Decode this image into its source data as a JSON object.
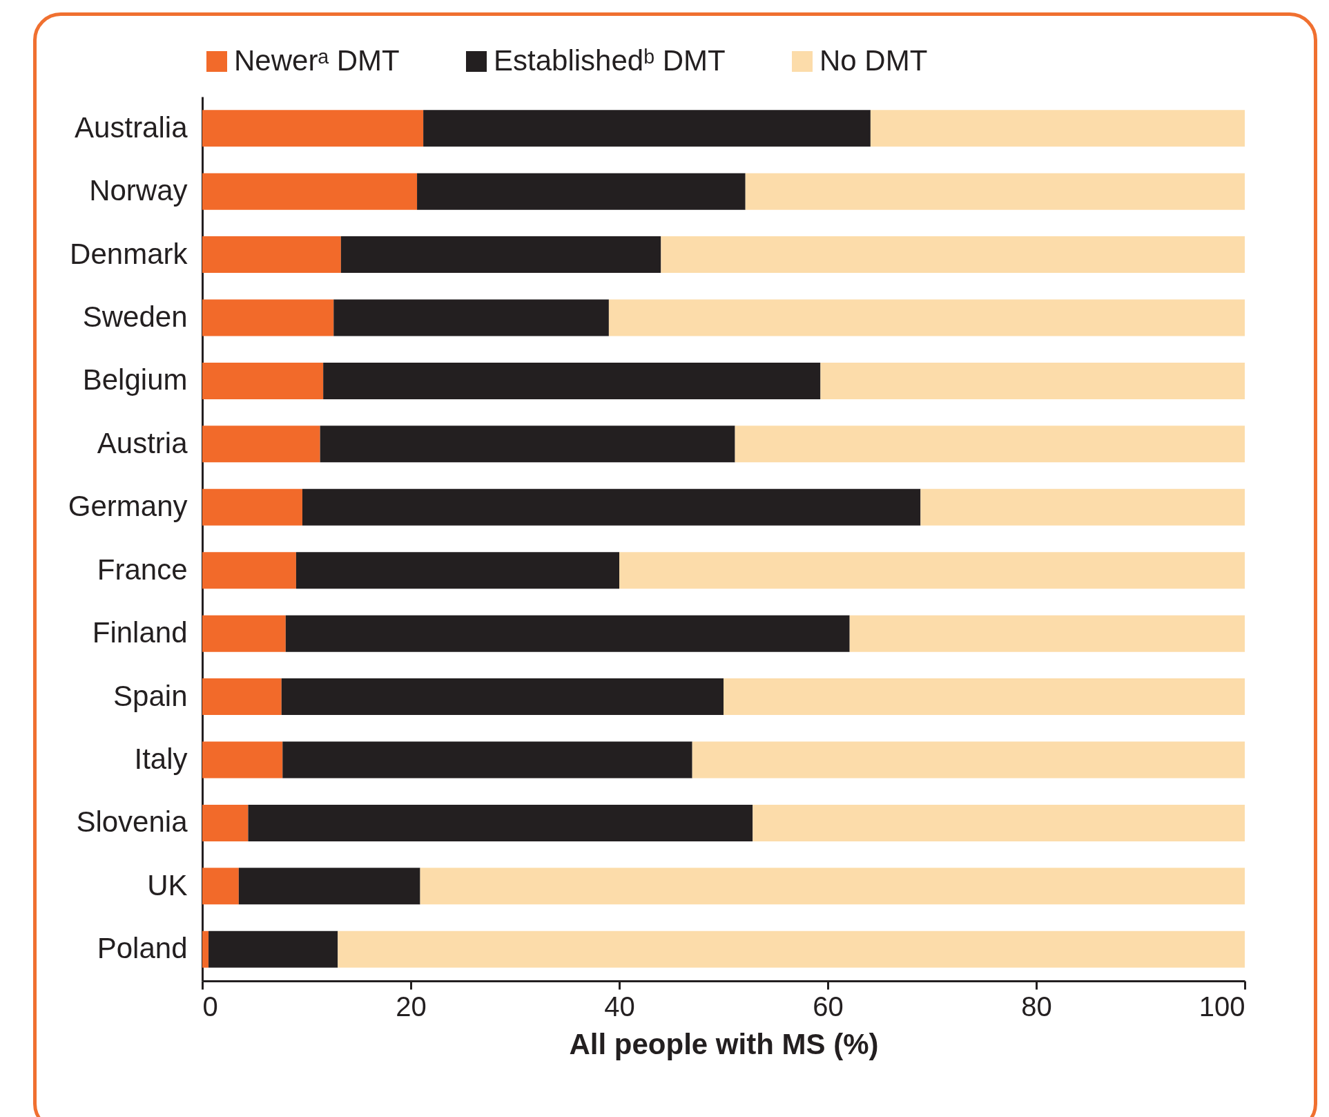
{
  "chart_data": {
    "type": "bar",
    "orientation": "horizontal",
    "stacked": true,
    "xlabel": "All people with MS (%)",
    "categories": [
      "Australia",
      "Norway",
      "Denmark",
      "Sweden",
      "Belgium",
      "Austria",
      "Germany",
      "France",
      "Finland",
      "Spain",
      "Italy",
      "Slovenia",
      "UK",
      "Poland"
    ],
    "series": [
      {
        "name": "Newerᵃ DMT",
        "color": "#f26a2a",
        "values": [
          21.2,
          20.6,
          13.3,
          12.6,
          11.6,
          11.3,
          9.6,
          9.0,
          8.0,
          7.6,
          7.7,
          4.4,
          3.5,
          0.6
        ]
      },
      {
        "name": "Establishedᵇ DMT",
        "color": "#231f20",
        "values": [
          42.9,
          31.5,
          30.7,
          26.4,
          47.7,
          39.8,
          59.3,
          31.0,
          54.1,
          42.4,
          39.3,
          48.4,
          17.4,
          12.4
        ]
      },
      {
        "name": "No DMT",
        "color": "#fcdcaa",
        "values": [
          35.9,
          47.9,
          56.0,
          61.0,
          40.7,
          48.9,
          31.1,
          60.0,
          37.9,
          50.0,
          53.0,
          47.2,
          79.1,
          87.0
        ]
      }
    ],
    "xlim": [
      0,
      100
    ],
    "xticks": [
      0,
      20,
      40,
      60,
      80,
      100
    ],
    "grid": false,
    "legend": "top"
  }
}
